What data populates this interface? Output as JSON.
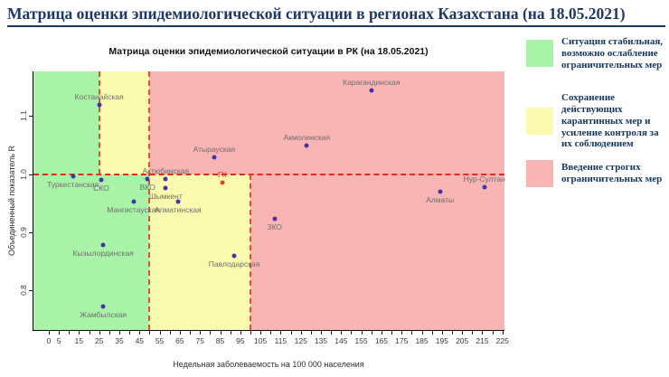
{
  "header": {
    "title": "Матрица оценки эпидемиологической ситуации в регионах Казахстана (на 18.05.2021)"
  },
  "chart_data": {
    "type": "scatter",
    "title": "Матрица оценки эпидемиологической ситуации в РК (на 18.05.2021)",
    "xlabel": "Недельная заболеваемость на 100 000 населения",
    "ylabel": "Объединенный показатель R",
    "xlim": [
      -7.6,
      226
    ],
    "ylim": [
      0.732,
      1.177
    ],
    "x_tick_labels": [
      0,
      5,
      15,
      25,
      35,
      45,
      55,
      65,
      75,
      85,
      95,
      105,
      115,
      125,
      135,
      145,
      155,
      165,
      175,
      185,
      195,
      205,
      215,
      225
    ],
    "x_minor_ticks": {
      "from": 0,
      "to": 225,
      "step": 5
    },
    "y_ticks": [
      {
        "v": 0.8,
        "label": "0.8"
      },
      {
        "v": 0.9,
        "label": "0.9"
      },
      {
        "v": 1.0,
        "label": "1.0"
      },
      {
        "v": 1.1,
        "label": "1.1"
      }
    ],
    "grid": false,
    "threshold_r": 1.0,
    "zone_thresholds": {
      "above_r1": [
        25,
        50
      ],
      "below_r1": [
        50,
        100
      ]
    },
    "zone_colors": {
      "green": "#a9f3a9",
      "yellow": "#fbfbb0",
      "red": "#f9b4b4"
    },
    "zones": [
      {
        "x0": -7.6,
        "x1": 25,
        "y0": 1.0,
        "y1": 1.177,
        "color": "#a9f3a9"
      },
      {
        "x0": 25,
        "x1": 50,
        "y0": 1.0,
        "y1": 1.177,
        "color": "#fbfbb0"
      },
      {
        "x0": 50,
        "x1": 226,
        "y0": 1.0,
        "y1": 1.177,
        "color": "#f9b4b4"
      },
      {
        "x0": -7.6,
        "x1": 50,
        "y0": 0.732,
        "y1": 1.0,
        "color": "#a9f3a9"
      },
      {
        "x0": 50,
        "x1": 100,
        "y0": 0.732,
        "y1": 1.0,
        "color": "#fbfbb0"
      },
      {
        "x0": 100,
        "x1": 226,
        "y0": 0.732,
        "y1": 1.0,
        "color": "#f9b4b4"
      }
    ],
    "boundaries": [
      {
        "type": "h",
        "y": 1.0,
        "x0": -7.6,
        "x1": 226,
        "color": "#e02b1e"
      },
      {
        "type": "v",
        "x": 25,
        "y0": 1.0,
        "y1": 1.177,
        "color": "#e2512b"
      },
      {
        "type": "v",
        "x": 50,
        "y0": 0.732,
        "y1": 1.177,
        "color": "#e2512b"
      },
      {
        "type": "v",
        "x": 100,
        "y0": 0.732,
        "y1": 1.0,
        "color": "#e2512b"
      }
    ],
    "point_color": "#4434aa",
    "label_color": "#6e6e6e",
    "points": [
      {
        "label": "Костанайская",
        "x": 25,
        "y": 1.12,
        "label_pos": "above"
      },
      {
        "label": "Карагандинская",
        "x": 160,
        "y": 1.145,
        "label_pos": "above"
      },
      {
        "label": "Акмолинская",
        "x": 128,
        "y": 1.049,
        "label_pos": "above"
      },
      {
        "label": "Атырауская",
        "x": 82,
        "y": 1.029,
        "label_pos": "above"
      },
      {
        "label": "Туркестанская",
        "x": 12,
        "y": 0.996,
        "label_pos": "below"
      },
      {
        "label": "СКО",
        "x": 26,
        "y": 0.991,
        "label_pos": "below"
      },
      {
        "label": "ВКО",
        "x": 49,
        "y": 0.992,
        "label_pos": "below"
      },
      {
        "label": "Актюбинская",
        "x": 58,
        "y": 0.992,
        "label_pos": "above"
      },
      {
        "label": "Шымкент",
        "x": 58,
        "y": 0.976,
        "label_pos": "below"
      },
      {
        "label": "Мангистауская",
        "x": 42,
        "y": 0.953,
        "label_pos": "below"
      },
      {
        "label": "Алматинская",
        "x": 64,
        "y": 0.953,
        "label_pos": "below"
      },
      {
        "label": "ГК",
        "x": 86,
        "y": 0.986,
        "label_pos": "above",
        "point_color": "#e8431f",
        "label_color": "#d2321f"
      },
      {
        "label": "Нур-Султан",
        "x": 216,
        "y": 0.978,
        "label_pos": "above"
      },
      {
        "label": "Алматы",
        "x": 194,
        "y": 0.97,
        "label_pos": "below"
      },
      {
        "label": "ЗКО",
        "x": 112,
        "y": 0.924,
        "label_pos": "below"
      },
      {
        "label": "Павлодарская",
        "x": 92,
        "y": 0.86,
        "label_pos": "below"
      },
      {
        "label": "Кызылординская",
        "x": 27,
        "y": 0.879,
        "label_pos": "below"
      },
      {
        "label": "Жамбылская",
        "x": 27,
        "y": 0.772,
        "label_pos": "below"
      }
    ]
  },
  "legend": {
    "items": [
      {
        "color": "#a9f3a9",
        "text": "Ситуация стабильная, возможно ослабление ограничительных мер"
      },
      {
        "color": "#fbfbb0",
        "text": "Сохранение действующих карантинных мер и усиление контроля за их соблюдением"
      },
      {
        "color": "#f9b4b4",
        "text": "Введение строгих ограничительных мер"
      }
    ]
  }
}
